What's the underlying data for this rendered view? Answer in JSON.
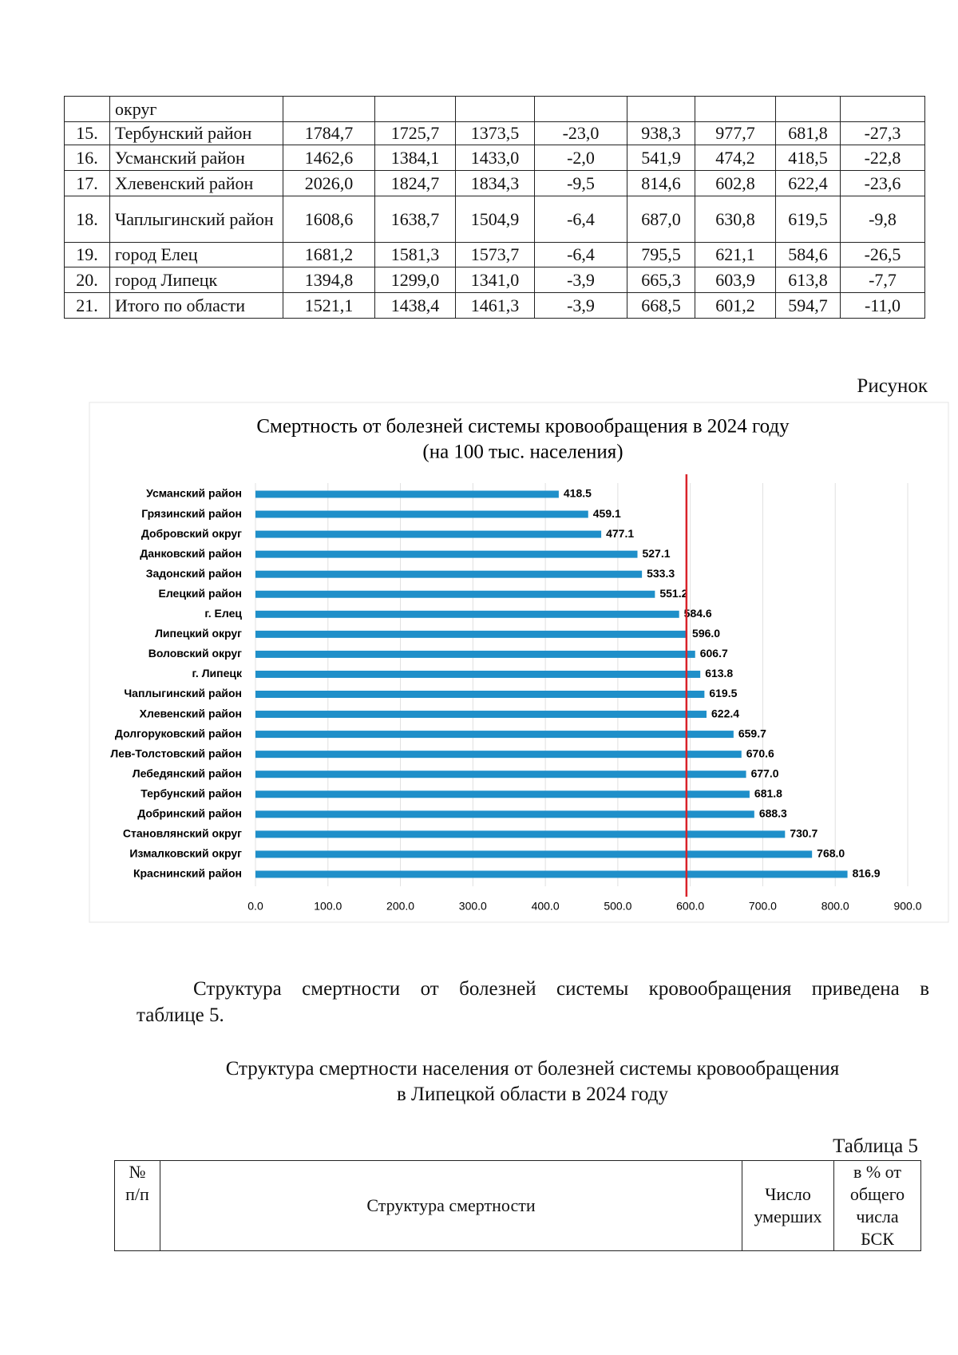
{
  "top_table": {
    "rows": [
      {
        "name": "округ"
      },
      {
        "num": "15.",
        "name": "Тербунский район",
        "values": [
          "1784,7",
          "1725,7",
          "1373,5",
          "-23,0",
          "938,3",
          "977,7",
          "681,8",
          "-27,3"
        ]
      },
      {
        "num": "16.",
        "name": "Усманский район",
        "values": [
          "1462,6",
          "1384,1",
          "1433,0",
          "-2,0",
          "541,9",
          "474,2",
          "418,5",
          "-22,8"
        ]
      },
      {
        "num": "17.",
        "name": "Хлевенский район",
        "values": [
          "2026,0",
          "1824,7",
          "1834,3",
          "-9,5",
          "814,6",
          "602,8",
          "622,4",
          "-23,6"
        ]
      },
      {
        "num": "18.",
        "name": "Чаплыгинский район",
        "values": [
          "1608,6",
          "1638,7",
          "1504,9",
          "-6,4",
          "687,0",
          "630,8",
          "619,5",
          "-9,8"
        ]
      },
      {
        "num": "19.",
        "name": "город Елец",
        "values": [
          "1681,2",
          "1581,3",
          "1573,7",
          "-6,4",
          "795,5",
          "621,1",
          "584,6",
          "-26,5"
        ]
      },
      {
        "num": "20.",
        "name": "город Липецк",
        "values": [
          "1394,8",
          "1299,0",
          "1341,0",
          "-3,9",
          "665,3",
          "603,9",
          "613,8",
          "-7,7"
        ]
      },
      {
        "num": "21.",
        "name": "Итого по области",
        "values": [
          "1521,1",
          "1438,4",
          "1461,3",
          "-3,9",
          "668,5",
          "601,2",
          "594,7",
          "-11,0"
        ]
      }
    ]
  },
  "figure_label": "Рисунок",
  "chart_data": {
    "type": "hbar",
    "title": [
      "Смертность от болезней системы кровообращения в 2024 году",
      "(на 100 тыс. населения)"
    ],
    "categories": [
      "Усманский район",
      "Грязинский район",
      "Добровский округ",
      "Данковский район",
      "Задонский район",
      "Елецкий район",
      "г. Елец",
      "Липецкий округ",
      "Воловский округ",
      "г. Липецк",
      "Чаплыгинский район",
      "Хлевенский район",
      "Долгоруковский район",
      "Лев-Толстовский район",
      "Лебедянский район",
      "Тербунский район",
      "Добринский район",
      "Становлянский округ",
      "Измалковский округ",
      "Краснинский район"
    ],
    "values": [
      418.5,
      459.1,
      477.1,
      527.1,
      533.3,
      551.2,
      584.6,
      596.0,
      606.7,
      613.8,
      619.5,
      622.4,
      659.7,
      670.6,
      677.0,
      681.8,
      688.3,
      730.7,
      768.0,
      816.9
    ],
    "value_labels": [
      "418.5",
      "459.1",
      "477.1",
      "527.1",
      "533.3",
      "551.2",
      "584.6",
      "596.0",
      "606.7",
      "613.8",
      "619.5",
      "622.4",
      "659.7",
      "670.6",
      "677.0",
      "681.8",
      "688.3",
      "730.7",
      "768.0",
      "816.9"
    ],
    "color": "#1f8fc9",
    "xlim": [
      0,
      900
    ],
    "xticks": [
      {
        "value": 0,
        "label": "0.0"
      },
      {
        "value": 100,
        "label": "100.0"
      },
      {
        "value": 200,
        "label": "200.0"
      },
      {
        "value": 300,
        "label": "300.0"
      },
      {
        "value": 400,
        "label": "400.0"
      },
      {
        "value": 500,
        "label": "500.0"
      },
      {
        "value": 600,
        "label": "600.0"
      },
      {
        "value": 700,
        "label": "700.0"
      },
      {
        "value": 800,
        "label": "800.0"
      },
      {
        "value": 900,
        "label": "900.0"
      }
    ],
    "grid": true,
    "reference_line": {
      "value": 594.7,
      "color": "#d9232a"
    }
  },
  "paragraph": [
    "Структура смертности от болезней системы кровообращения приведена в",
    "таблице 5."
  ],
  "heading": [
    "Структура смертности населения от болезней системы кровообращения",
    "в Липецкой области в 2024 году"
  ],
  "table5": {
    "caption": "Таблица 5",
    "header": [
      "№ п/п",
      "Структура смертности",
      "Число умерших",
      "в % от общего числа БСК"
    ]
  }
}
